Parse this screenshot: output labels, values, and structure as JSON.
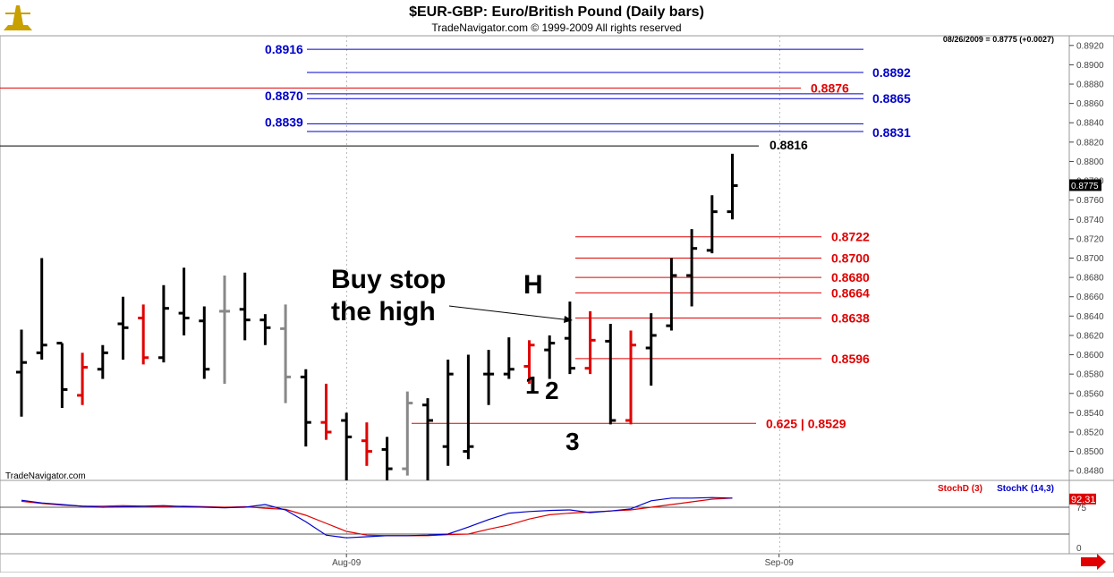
{
  "header": {
    "title": "$EUR-GBP:  Euro/British Pound  (Daily bars)",
    "subtitle": "TradeNavigator.com © 1999-2009 All rights reserved",
    "quote": "08/26/2009 = 0.8775 (+0.0027)",
    "watermark": "TradeNavigator.com"
  },
  "colors": {
    "up": "#000000",
    "down": "#e00000",
    "neutral": "#888888",
    "blue_level": "#0000cc",
    "red_level": "#e00000",
    "black_level": "#000000",
    "stoch_d": "#e00000",
    "stoch_k": "#0000cc",
    "logo": "#c8a000"
  },
  "chart_data": [
    {
      "type": "ohlc",
      "title": "$EUR-GBP:  Euro/British Pound  (Daily bars)",
      "ylim": [
        0.847,
        0.893
      ],
      "y_ticks": [
        "0.8480",
        "0.8500",
        "0.8520",
        "0.8540",
        "0.8560",
        "0.8580",
        "0.8600",
        "0.8620",
        "0.8640",
        "0.8660",
        "0.8680",
        "0.8700",
        "0.8720",
        "0.8740",
        "0.8760",
        "0.8780",
        "0.8800",
        "0.8820",
        "0.8840",
        "0.8860",
        "0.8880",
        "0.8900",
        "0.8920"
      ],
      "x_labels": [
        "Aug-09",
        "Sep-09"
      ],
      "last_price_label": "0.8775",
      "bars": [
        {
          "o": 0.8582,
          "h": 0.8626,
          "l": 0.8536,
          "c": 0.8592,
          "color": "up"
        },
        {
          "o": 0.8602,
          "h": 0.87,
          "l": 0.8595,
          "c": 0.861,
          "color": "up"
        },
        {
          "o": 0.8612,
          "h": 0.8612,
          "l": 0.8545,
          "c": 0.8564,
          "color": "up"
        },
        {
          "o": 0.8558,
          "h": 0.8602,
          "l": 0.8548,
          "c": 0.8587,
          "color": "down"
        },
        {
          "o": 0.8585,
          "h": 0.861,
          "l": 0.8575,
          "c": 0.8602,
          "color": "up"
        },
        {
          "o": 0.8632,
          "h": 0.866,
          "l": 0.8595,
          "c": 0.8628,
          "color": "up"
        },
        {
          "o": 0.8638,
          "h": 0.8652,
          "l": 0.859,
          "c": 0.8597,
          "color": "down"
        },
        {
          "o": 0.8597,
          "h": 0.8672,
          "l": 0.8592,
          "c": 0.8648,
          "color": "up"
        },
        {
          "o": 0.8643,
          "h": 0.869,
          "l": 0.862,
          "c": 0.8638,
          "color": "up"
        },
        {
          "o": 0.8635,
          "h": 0.865,
          "l": 0.8575,
          "c": 0.8585,
          "color": "up"
        },
        {
          "o": 0.8645,
          "h": 0.8682,
          "l": 0.857,
          "c": 0.8645,
          "color": "neutral"
        },
        {
          "o": 0.8647,
          "h": 0.8685,
          "l": 0.8615,
          "c": 0.8636,
          "color": "up"
        },
        {
          "o": 0.8636,
          "h": 0.8642,
          "l": 0.861,
          "c": 0.8628,
          "color": "up"
        },
        {
          "o": 0.8627,
          "h": 0.8652,
          "l": 0.855,
          "c": 0.8577,
          "color": "neutral"
        },
        {
          "o": 0.8577,
          "h": 0.8585,
          "l": 0.8505,
          "c": 0.853,
          "color": "up"
        },
        {
          "o": 0.853,
          "h": 0.857,
          "l": 0.8512,
          "c": 0.852,
          "color": "down"
        },
        {
          "o": 0.8532,
          "h": 0.854,
          "l": 0.847,
          "c": 0.8515,
          "color": "up"
        },
        {
          "o": 0.8511,
          "h": 0.853,
          "l": 0.8485,
          "c": 0.85,
          "color": "down"
        },
        {
          "o": 0.8502,
          "h": 0.8515,
          "l": 0.847,
          "c": 0.8482,
          "color": "up"
        },
        {
          "o": 0.8482,
          "h": 0.8562,
          "l": 0.8475,
          "c": 0.855,
          "color": "neutral"
        },
        {
          "o": 0.8548,
          "h": 0.8555,
          "l": 0.847,
          "c": 0.8532,
          "color": "up"
        },
        {
          "o": 0.8505,
          "h": 0.8595,
          "l": 0.8485,
          "c": 0.858,
          "color": "up"
        },
        {
          "o": 0.85,
          "h": 0.86,
          "l": 0.8492,
          "c": 0.8505,
          "color": "up"
        },
        {
          "o": 0.858,
          "h": 0.8605,
          "l": 0.8548,
          "c": 0.858,
          "color": "up"
        },
        {
          "o": 0.858,
          "h": 0.8618,
          "l": 0.8575,
          "c": 0.8585,
          "color": "up"
        },
        {
          "o": 0.8588,
          "h": 0.8615,
          "l": 0.857,
          "c": 0.861,
          "color": "down"
        },
        {
          "o": 0.8605,
          "h": 0.862,
          "l": 0.8575,
          "c": 0.8612,
          "color": "up"
        },
        {
          "o": 0.8617,
          "h": 0.8655,
          "l": 0.858,
          "c": 0.8586,
          "color": "up"
        },
        {
          "o": 0.8586,
          "h": 0.8645,
          "l": 0.858,
          "c": 0.8615,
          "color": "down"
        },
        {
          "o": 0.8614,
          "h": 0.8632,
          "l": 0.8528,
          "c": 0.8532,
          "color": "up"
        },
        {
          "o": 0.8532,
          "h": 0.8625,
          "l": 0.8528,
          "c": 0.861,
          "color": "down"
        },
        {
          "o": 0.8607,
          "h": 0.8643,
          "l": 0.8568,
          "c": 0.862,
          "color": "up"
        },
        {
          "o": 0.863,
          "h": 0.87,
          "l": 0.8625,
          "c": 0.8682,
          "color": "up"
        },
        {
          "o": 0.8682,
          "h": 0.873,
          "l": 0.865,
          "c": 0.871,
          "color": "up"
        },
        {
          "o": 0.8708,
          "h": 0.8765,
          "l": 0.8705,
          "c": 0.8748,
          "color": "up"
        },
        {
          "o": 0.8748,
          "h": 0.8808,
          "l": 0.874,
          "c": 0.8775,
          "color": "up"
        }
      ]
    },
    {
      "type": "line",
      "title": "",
      "series": [
        {
          "name": "StochD (3)",
          "values": [
            86,
            82,
            79,
            77,
            77,
            78,
            77,
            76,
            77,
            76,
            75,
            76,
            73,
            71,
            60,
            45,
            30,
            23,
            22,
            22,
            22,
            24,
            25,
            34,
            42,
            53,
            61,
            64,
            66,
            68,
            70,
            75,
            80,
            85,
            90,
            92
          ]
        },
        {
          "name": "StochK (14,3)",
          "values": [
            88,
            83,
            80,
            77,
            75,
            76,
            77,
            78,
            76,
            75,
            74,
            75,
            80,
            70,
            48,
            23,
            18,
            20,
            22,
            22,
            23,
            25,
            38,
            52,
            64,
            67,
            69,
            70,
            65,
            68,
            72,
            87,
            92,
            92,
            93,
            92
          ]
        }
      ],
      "ylim": [
        0,
        100
      ],
      "y_ticks": [
        "0",
        "75"
      ],
      "last_value_label": "92.31"
    }
  ],
  "levels": [
    {
      "label": "0.8916",
      "value": 0.8916,
      "color": "blue",
      "label_side": "left"
    },
    {
      "label": "0.8892",
      "value": 0.8892,
      "color": "blue",
      "label_side": "right"
    },
    {
      "label": "0.8876",
      "value": 0.8876,
      "color": "red",
      "label_side": "right"
    },
    {
      "label": "0.8870",
      "value": 0.887,
      "color": "blue",
      "label_side": "left"
    },
    {
      "label": "0.8865",
      "value": 0.8865,
      "color": "blue",
      "label_side": "right"
    },
    {
      "label": "0.8839",
      "value": 0.8839,
      "color": "blue",
      "label_side": "left"
    },
    {
      "label": "0.8831",
      "value": 0.8831,
      "color": "blue",
      "label_side": "right"
    },
    {
      "label": "0.8816",
      "value": 0.8816,
      "color": "black",
      "label_side": "right"
    },
    {
      "label": "0.8722",
      "value": 0.8722,
      "color": "red",
      "label_side": "right"
    },
    {
      "label": "0.8700",
      "value": 0.87,
      "color": "red",
      "label_side": "right"
    },
    {
      "label": "0.8680",
      "value": 0.868,
      "color": "red",
      "label_side": "right"
    },
    {
      "label": "0.8664",
      "value": 0.8664,
      "color": "red",
      "label_side": "right"
    },
    {
      "label": "0.8638",
      "value": 0.8638,
      "color": "red",
      "label_side": "right"
    },
    {
      "label": "0.8596",
      "value": 0.8596,
      "color": "red",
      "label_side": "right"
    },
    {
      "label": "0.625 | 0.8529",
      "value": 0.8529,
      "color": "red",
      "label_side": "right"
    }
  ],
  "annotations": {
    "buy_line1": "Buy stop",
    "buy_line2": "the high",
    "h": "H",
    "one": "1",
    "two": "2",
    "three": "3"
  }
}
